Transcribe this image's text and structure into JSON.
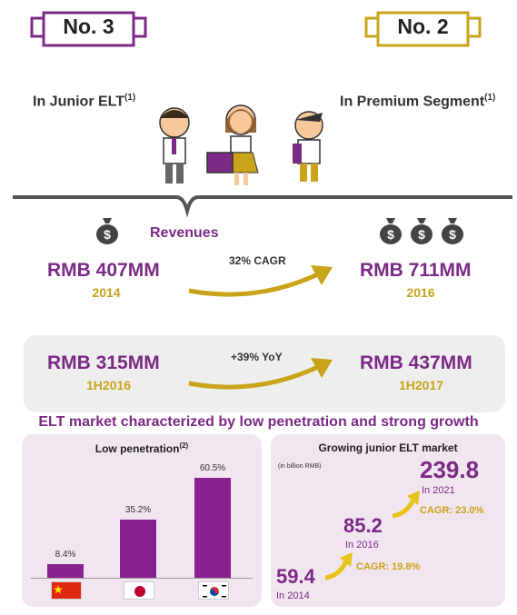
{
  "ranks": {
    "left": {
      "badge": "No. 3",
      "caption": "In Junior ELT",
      "sup": "(1)"
    },
    "right": {
      "badge": "No. 2",
      "caption": "In Premium Segment",
      "sup": "(1)"
    }
  },
  "revenues": {
    "title": "Revenues",
    "annual": {
      "from_value": "RMB 407MM",
      "from_year": "2014",
      "growth": "32% CAGR",
      "to_value": "RMB 711MM",
      "to_year": "2016"
    },
    "half": {
      "from_value": "RMB 315MM",
      "from_year": "1H2016",
      "growth": "+39% YoY",
      "to_value": "RMB 437MM",
      "to_year": "1H2017"
    }
  },
  "market_title": "ELT market characterized by low penetration and strong growth",
  "penetration": {
    "title": "Low penetration",
    "sup": "(2)",
    "chart_data": {
      "type": "bar",
      "categories": [
        "China",
        "Japan",
        "Korea"
      ],
      "values": [
        8.4,
        35.2,
        60.5
      ],
      "labels": [
        "8.4%",
        "35.2%",
        "60.5%"
      ],
      "ylim": [
        0,
        60.5
      ]
    }
  },
  "growing": {
    "title": "Growing junior ELT market",
    "unit": "(in billion RMB)",
    "points": [
      {
        "value": "59.4",
        "year": "In 2014"
      },
      {
        "value": "85.2",
        "year": "In 2016"
      },
      {
        "value": "239.8",
        "year": "In 2021"
      }
    ],
    "cagr1": "CAGR: 19.8%",
    "cagr2": "CAGR: 23.0%"
  },
  "colors": {
    "purple": "#7b2a86",
    "gold": "#c9a41a",
    "panel": "#f1e5ef"
  }
}
